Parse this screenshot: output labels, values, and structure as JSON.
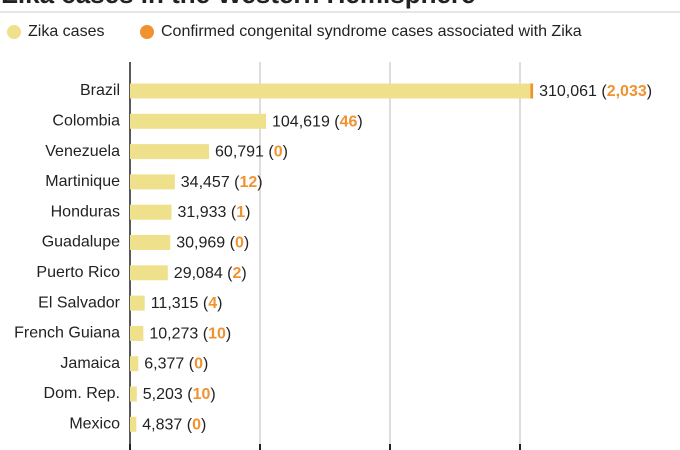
{
  "chart_data": {
    "type": "bar",
    "title": "Zika cases in the Western Hemisphere",
    "categories": [
      "Brazil",
      "Colombia",
      "Venezuela",
      "Martinique",
      "Honduras",
      "Guadalupe",
      "Puerto Rico",
      "El Salvador",
      "French Guiana",
      "Jamaica",
      "Dom. Rep.",
      "Mexico"
    ],
    "series": [
      {
        "name": "Zika cases",
        "color": "#efe08c",
        "values": [
          310061,
          104619,
          60791,
          34457,
          31933,
          30969,
          29084,
          11315,
          10273,
          6377,
          5203,
          4837
        ],
        "value_labels": [
          "310,061",
          "104,619",
          "60,791",
          "34,457",
          "31,933",
          "30,969",
          "29,084",
          "11,315",
          "10,273",
          "6,377",
          "5,203",
          "4,837"
        ]
      },
      {
        "name": "Confirmed congenital syndrome cases associated with Zika",
        "color": "#f0922f",
        "values": [
          2033,
          46,
          0,
          12,
          1,
          0,
          2,
          4,
          10,
          0,
          10,
          0
        ],
        "value_labels": [
          "2,033",
          "46",
          "0",
          "12",
          "1",
          "0",
          "2",
          "4",
          "10",
          "0",
          "10",
          "0"
        ]
      }
    ],
    "xlim": [
      0,
      400000
    ],
    "xticks": [
      0,
      100000,
      200000,
      300000
    ],
    "grid": true
  }
}
